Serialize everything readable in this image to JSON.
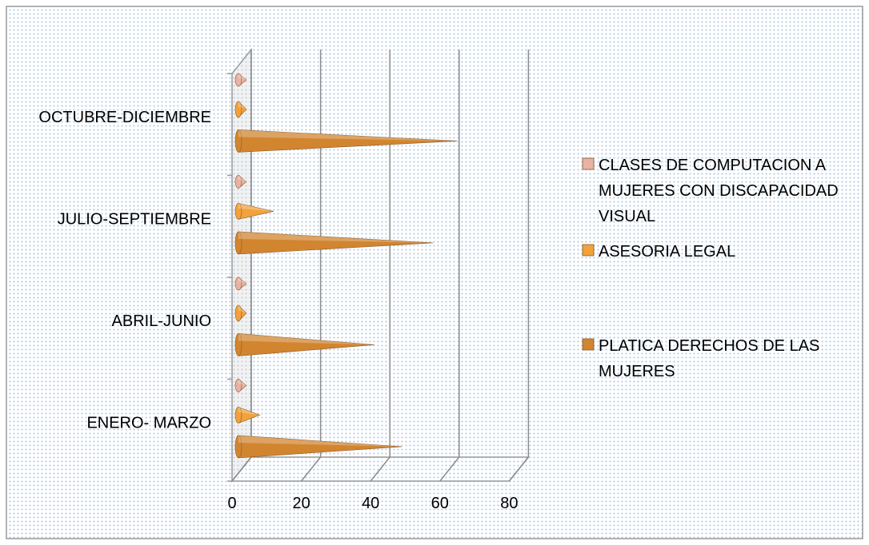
{
  "chart_data": {
    "type": "bar",
    "orientation": "horizontal",
    "style": "3d-cone",
    "categories": [
      "ENERO- MARZO",
      "ABRIL-JUNIO",
      "JULIO-SEPTIEMBRE",
      "OCTUBRE-DICIEMBRE"
    ],
    "series": [
      {
        "name": "PLATICA DERECHOS DE LAS MUJERES",
        "values": [
          49,
          41,
          58,
          65
        ],
        "color": "#d2852f"
      },
      {
        "name": "ASESORIA LEGAL",
        "values": [
          8,
          4,
          12,
          4
        ],
        "color": "#f2a23c"
      },
      {
        "name": "CLASES DE COMPUTACION A MUJERES CON DISCAPACIDAD VISUAL",
        "values": [
          2,
          2,
          2,
          2
        ],
        "color": "#e8b3a4"
      }
    ],
    "x_ticks": [
      "0",
      "20",
      "40",
      "60",
      "80"
    ],
    "xlim": [
      0,
      80
    ],
    "grid": true,
    "legend_position": "right",
    "legend_order": [
      "CLASES DE COMPUTACION A MUJERES CON DISCAPACIDAD VISUAL",
      "ASESORIA LEGAL",
      "PLATICA DERECHOS DE LAS MUJERES"
    ],
    "legend_lines": [
      [
        "CLASES DE COMPUTACION A",
        "MUJERES CON DISCAPACIDAD",
        "VISUAL"
      ],
      [
        "ASESORIA LEGAL"
      ],
      [
        "PLATICA DERECHOS DE LAS",
        "MUJERES"
      ]
    ],
    "title": "",
    "xlabel": "",
    "ylabel": ""
  }
}
